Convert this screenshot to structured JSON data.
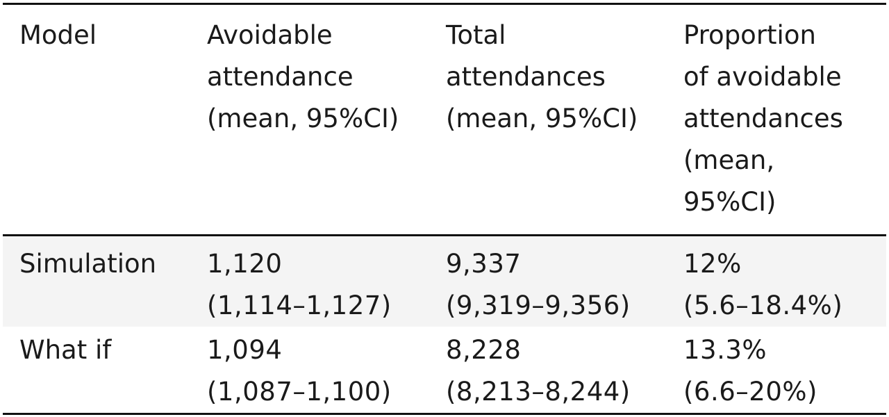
{
  "table": {
    "headers": [
      [
        "Model"
      ],
      [
        "Avoidable",
        "attendance",
        "(mean, 95%CI)"
      ],
      [
        "Total",
        "attendances",
        "(mean, 95%CI)"
      ],
      [
        "Proportion",
        "of avoidable",
        "attendances",
        "(mean,",
        "95%CI)"
      ]
    ],
    "rows": [
      {
        "model": "Simulation",
        "avoidable": [
          "1,120",
          "(1,114–1,127)"
        ],
        "total": [
          "9,337",
          "(9,319–9,356)"
        ],
        "proportion": [
          "12%",
          "(5.6–18.4%)"
        ]
      },
      {
        "model": "What if",
        "avoidable": [
          "1,094",
          "(1,087–1,100)"
        ],
        "total": [
          "8,228",
          "(8,213–8,244)"
        ],
        "proportion": [
          "13.3%",
          "(6.6–20%)"
        ]
      }
    ]
  },
  "colors": {
    "rule": "#111111",
    "shaded_row": "#f4f4f4",
    "text": "#1a1a1a"
  }
}
